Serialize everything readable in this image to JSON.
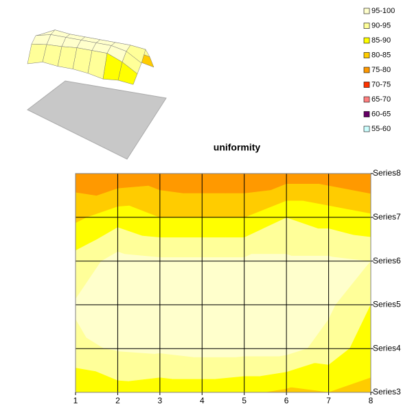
{
  "chart_data": {
    "type": "contour",
    "title": "uniformity",
    "x": [
      1,
      2,
      3,
      4,
      5,
      6,
      7,
      8
    ],
    "xlim": [
      1,
      8
    ],
    "xticks": [
      1,
      2,
      3,
      4,
      5,
      6,
      7,
      8
    ],
    "categories": [
      "Series3",
      "Series4",
      "Series5",
      "Series6",
      "Series7",
      "Series8"
    ],
    "z": [
      [
        85,
        88,
        87,
        87,
        86,
        84,
        85,
        84
      ],
      [
        94,
        95.5,
        96,
        97,
        97,
        97,
        93,
        87
      ],
      [
        95.5,
        98,
        98,
        98,
        98,
        98,
        96,
        90
      ],
      [
        92,
        97,
        96,
        96,
        96,
        96,
        96,
        95
      ],
      [
        84,
        88,
        85,
        85,
        85,
        90,
        88,
        86
      ],
      [
        77,
        76,
        77,
        76,
        76,
        77,
        77,
        75
      ]
    ],
    "bands": [
      {
        "name": "95-100",
        "range": [
          95,
          100
        ],
        "color": "#ffffcc"
      },
      {
        "name": "90-95",
        "range": [
          90,
          95
        ],
        "color": "#ffff99"
      },
      {
        "name": "85-90",
        "range": [
          85,
          90
        ],
        "color": "#ffff00"
      },
      {
        "name": "80-85",
        "range": [
          80,
          85
        ],
        "color": "#ffcc00"
      },
      {
        "name": "75-80",
        "range": [
          75,
          80
        ],
        "color": "#ff9900"
      },
      {
        "name": "70-75",
        "range": [
          70,
          75
        ],
        "color": "#ff3300"
      },
      {
        "name": "65-70",
        "range": [
          65,
          70
        ],
        "color": "#ff8080"
      },
      {
        "name": "60-65",
        "range": [
          60,
          65
        ],
        "color": "#660066"
      },
      {
        "name": "55-60",
        "range": [
          55,
          60
        ],
        "color": "#ccffff"
      }
    ],
    "grid": true
  }
}
